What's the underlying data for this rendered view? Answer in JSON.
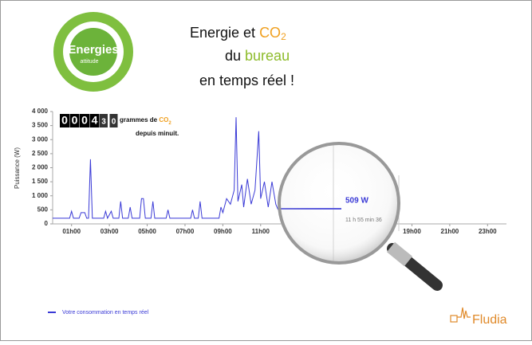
{
  "header": {
    "title_1": "Energie et ",
    "title_co": "CO",
    "title_sub": "2",
    "title_2a": "du ",
    "title_2b": "bureau",
    "title_3": "en temps réel !",
    "logo_main": "Energies",
    "logo_sub": "attitude"
  },
  "counter": {
    "digits": [
      "0",
      "0",
      "0",
      "4",
      "3",
      "0"
    ],
    "unit": "grammes de ",
    "unit_co": "CO",
    "unit_sub": "2",
    "since": "depuis minuit."
  },
  "tooltip": {
    "value": "509 W",
    "time": "11 h 55 min 36"
  },
  "brand": "Fludia",
  "chart_data": {
    "type": "line",
    "y_label": "Puissance (W)",
    "x": [
      0,
      0.9,
      1.0,
      1.1,
      1.4,
      1.5,
      1.7,
      1.8,
      1.9,
      2.0,
      2.1,
      2.7,
      2.8,
      2.9,
      3.1,
      3.2,
      3.5,
      3.6,
      3.7,
      4.0,
      4.1,
      4.2,
      4.6,
      4.7,
      4.8,
      4.9,
      5.2,
      5.3,
      5.4,
      6.0,
      6.1,
      6.2,
      7.3,
      7.4,
      7.5,
      7.7,
      7.8,
      7.9,
      8.8,
      8.9,
      9.0,
      9.2,
      9.4,
      9.6,
      9.7,
      9.8,
      10.0,
      10.1,
      10.3,
      10.5,
      10.7,
      10.9,
      11.0,
      11.2,
      11.4,
      11.6,
      11.8,
      11.92
    ],
    "series": [
      {
        "name": "Votre consommation en temps réel",
        "color": "#3a3ad6",
        "values": [
          200,
          200,
          450,
          200,
          200,
          400,
          400,
          200,
          200,
          2300,
          200,
          200,
          450,
          200,
          450,
          200,
          200,
          800,
          200,
          200,
          600,
          200,
          200,
          900,
          900,
          200,
          200,
          800,
          200,
          200,
          500,
          200,
          200,
          500,
          200,
          200,
          800,
          200,
          200,
          600,
          400,
          900,
          700,
          1200,
          3800,
          800,
          1400,
          600,
          1600,
          700,
          1200,
          3300,
          900,
          1500,
          600,
          1500,
          700,
          509
        ]
      }
    ],
    "xlim": [
      0,
      24
    ],
    "xticks": [
      {
        "value": 1,
        "label": "01h00"
      },
      {
        "value": 3,
        "label": "03h00"
      },
      {
        "value": 5,
        "label": "05h00"
      },
      {
        "value": 7,
        "label": "07h00"
      },
      {
        "value": 9,
        "label": "09h00"
      },
      {
        "value": 11,
        "label": "11h00"
      },
      {
        "value": 19,
        "label": "19h00"
      },
      {
        "value": 21,
        "label": "21h00"
      },
      {
        "value": 23,
        "label": "23h00"
      }
    ],
    "ylim": [
      0,
      4000
    ],
    "yticks": [
      0,
      500,
      {
        "value": 1000,
        "label": "1 000"
      },
      {
        "value": 1500,
        "label": "1 500"
      },
      {
        "value": 2000,
        "label": "2 000"
      },
      {
        "value": 2500,
        "label": "2 500"
      },
      {
        "value": 3000,
        "label": "3 000"
      },
      {
        "value": 3500,
        "label": "3 500"
      },
      {
        "value": 4000,
        "label": "4 000"
      }
    ]
  }
}
